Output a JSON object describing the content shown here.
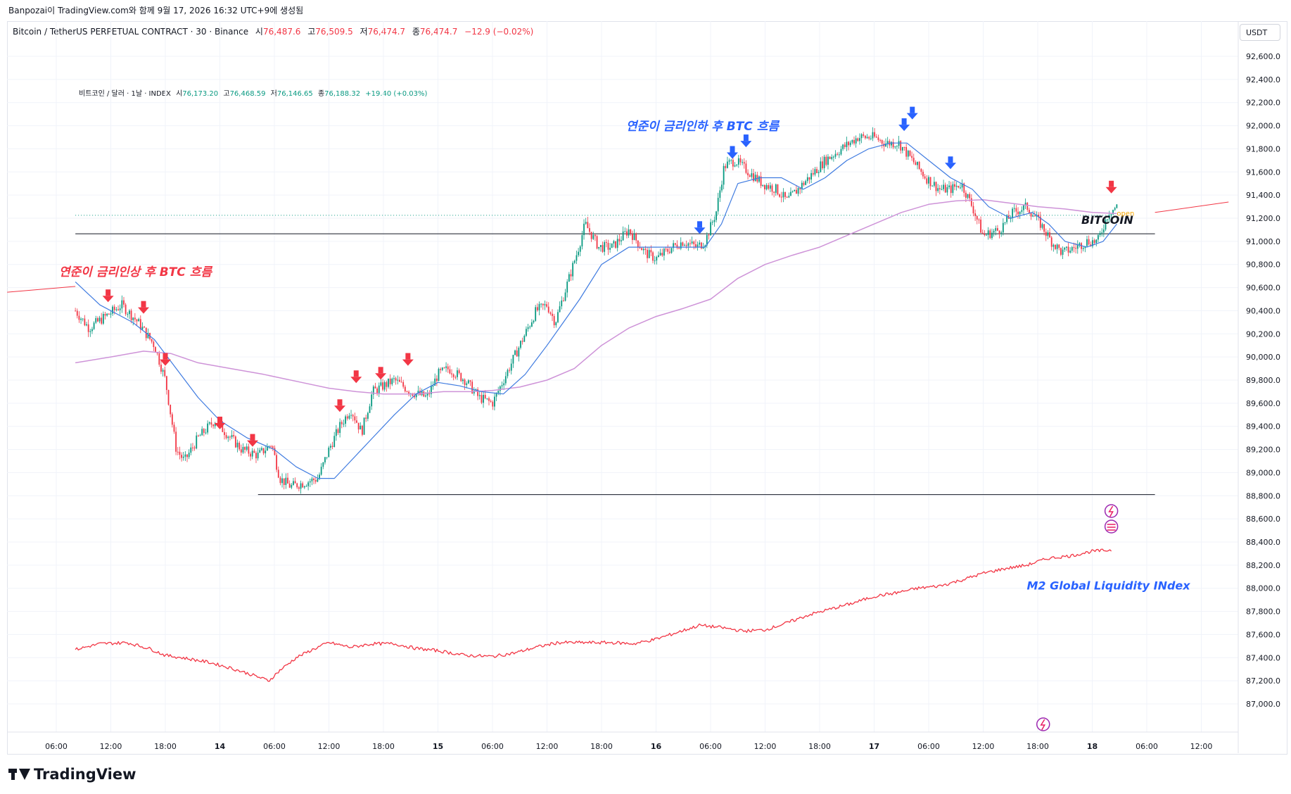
{
  "header": {
    "publish_line": "Banpozai이 TradingView.com와 함께 9월 17, 2026 16:32 UTC+9에 생성됨"
  },
  "legend": {
    "symbol": "Bitcoin / TetherUS PERPETUAL CONTRACT · 30 · Binance",
    "open_label": "시",
    "open": "76,487.6",
    "high_label": "고",
    "high": "76,509.5",
    "low_label": "저",
    "low": "76,474.7",
    "close_label": "종",
    "close": "76,474.7",
    "change": "−12.9 (−0.02%)"
  },
  "legend2": {
    "symbol": "비트코인 / 달러 · 1날 · INDEX",
    "open_label": "시",
    "open": "76,173.20",
    "high_label": "고",
    "high": "76,468.59",
    "low_label": "저",
    "low": "76,146.65",
    "close_label": "종",
    "close": "76,188.32",
    "change": "+19.40 (+0.03%)"
  },
  "currency": "USDT",
  "footer": {
    "brand": "TradingView"
  },
  "colors": {
    "up": "#089981",
    "down": "#f23645",
    "ma_fast": "#3f7be0",
    "ma_slow": "#ce93d8",
    "m2": "#f23645",
    "buy_arrow": "#2962ff",
    "sell_arrow": "#f23645",
    "ann_red": "#f23645",
    "ann_blue": "#2962ff"
  },
  "chart_data": {
    "type": "line",
    "yticks": [
      "92,600.0",
      "92,400.0",
      "92,200.0",
      "92,000.0",
      "91,800.0",
      "91,600.0",
      "91,400.0",
      "91,200.0",
      "91,000.0",
      "90,800.0",
      "90,600.0",
      "90,400.0",
      "90,200.0",
      "90,000.0",
      "89,800.0",
      "89,600.0",
      "89,400.0",
      "89,200.0",
      "89,000.0",
      "88,800.0",
      "88,600.0",
      "88,400.0",
      "88,200.0",
      "88,000.0",
      "87,800.0",
      "87,600.0",
      "87,400.0",
      "87,200.0",
      "87,000.0"
    ],
    "ylim": [
      86900,
      92700
    ],
    "xticks": [
      "06:00",
      "12:00",
      "18:00",
      "14",
      "06:00",
      "12:00",
      "18:00",
      "15",
      "06:00",
      "12:00",
      "18:00",
      "16",
      "06:00",
      "12:00",
      "18:00",
      "17",
      "06:00",
      "12:00",
      "18:00",
      "18",
      "06:00",
      "12:00"
    ],
    "xticks_bold": [
      3,
      7,
      11,
      15,
      19
    ],
    "xlim_ticks": [
      0,
      21
    ],
    "data_range_ticks": [
      0.35,
      18.35
    ],
    "price_path": [
      [
        0.35,
        90400
      ],
      [
        0.6,
        90250
      ],
      [
        0.9,
        90350
      ],
      [
        1.2,
        90450
      ],
      [
        1.5,
        90300
      ],
      [
        1.8,
        90100
      ],
      [
        2.0,
        89800
      ],
      [
        2.1,
        89500
      ],
      [
        2.2,
        89200
      ],
      [
        2.35,
        89100
      ],
      [
        2.6,
        89300
      ],
      [
        2.9,
        89450
      ],
      [
        3.1,
        89350
      ],
      [
        3.4,
        89200
      ],
      [
        3.7,
        89150
      ],
      [
        3.95,
        89250
      ],
      [
        4.1,
        88950
      ],
      [
        4.3,
        88880
      ],
      [
        4.6,
        88920
      ],
      [
        4.8,
        88950
      ],
      [
        5.0,
        89200
      ],
      [
        5.2,
        89400
      ],
      [
        5.4,
        89550
      ],
      [
        5.6,
        89350
      ],
      [
        5.8,
        89700
      ],
      [
        6.0,
        89750
      ],
      [
        6.2,
        89800
      ],
      [
        6.5,
        89700
      ],
      [
        6.8,
        89650
      ],
      [
        7.0,
        89850
      ],
      [
        7.2,
        89900
      ],
      [
        7.5,
        89800
      ],
      [
        7.75,
        89650
      ],
      [
        8.0,
        89600
      ],
      [
        8.2,
        89800
      ],
      [
        8.4,
        90000
      ],
      [
        8.6,
        90200
      ],
      [
        8.8,
        90400
      ],
      [
        9.0,
        90450
      ],
      [
        9.15,
        90300
      ],
      [
        9.35,
        90600
      ],
      [
        9.55,
        90900
      ],
      [
        9.7,
        91150
      ],
      [
        9.95,
        90950
      ],
      [
        10.2,
        90950
      ],
      [
        10.5,
        91100
      ],
      [
        10.8,
        90900
      ],
      [
        11.0,
        90850
      ],
      [
        11.3,
        90950
      ],
      [
        11.5,
        91000
      ],
      [
        11.75,
        90950
      ],
      [
        11.9,
        91000
      ],
      [
        12.1,
        91250
      ],
      [
        12.25,
        91650
      ],
      [
        12.45,
        91700
      ],
      [
        12.7,
        91600
      ],
      [
        12.95,
        91500
      ],
      [
        13.2,
        91450
      ],
      [
        13.4,
        91350
      ],
      [
        13.6,
        91450
      ],
      [
        13.8,
        91550
      ],
      [
        14.1,
        91700
      ],
      [
        14.4,
        91800
      ],
      [
        14.7,
        91900
      ],
      [
        15.0,
        91900
      ],
      [
        15.2,
        91850
      ],
      [
        15.45,
        91850
      ],
      [
        15.7,
        91700
      ],
      [
        15.95,
        91550
      ],
      [
        16.2,
        91450
      ],
      [
        16.4,
        91450
      ],
      [
        16.6,
        91500
      ],
      [
        16.8,
        91300
      ],
      [
        17.0,
        91050
      ],
      [
        17.3,
        91100
      ],
      [
        17.55,
        91250
      ],
      [
        17.8,
        91300
      ],
      [
        18.05,
        91150
      ],
      [
        18.25,
        91000
      ],
      [
        18.45,
        90900
      ],
      [
        18.7,
        90950
      ],
      [
        18.9,
        91000
      ],
      [
        19.1,
        91000
      ],
      [
        19.3,
        91250
      ],
      [
        19.45,
        91300
      ]
    ],
    "ma_fast": [
      [
        0.35,
        90650
      ],
      [
        0.8,
        90450
      ],
      [
        1.4,
        90300
      ],
      [
        1.8,
        90150
      ],
      [
        2.2,
        89900
      ],
      [
        2.6,
        89650
      ],
      [
        3.0,
        89450
      ],
      [
        3.5,
        89300
      ],
      [
        4.0,
        89200
      ],
      [
        4.4,
        89050
      ],
      [
        4.8,
        88950
      ],
      [
        5.1,
        88950
      ],
      [
        5.4,
        89100
      ],
      [
        5.8,
        89300
      ],
      [
        6.2,
        89500
      ],
      [
        6.6,
        89680
      ],
      [
        7.0,
        89780
      ],
      [
        7.4,
        89750
      ],
      [
        7.8,
        89700
      ],
      [
        8.2,
        89680
      ],
      [
        8.6,
        89850
      ],
      [
        9.0,
        90100
      ],
      [
        9.3,
        90300
      ],
      [
        9.6,
        90500
      ],
      [
        10.0,
        90800
      ],
      [
        10.5,
        90950
      ],
      [
        11.0,
        90950
      ],
      [
        11.5,
        90950
      ],
      [
        11.9,
        90950
      ],
      [
        12.2,
        91150
      ],
      [
        12.5,
        91500
      ],
      [
        12.9,
        91550
      ],
      [
        13.3,
        91550
      ],
      [
        13.7,
        91450
      ],
      [
        14.1,
        91550
      ],
      [
        14.5,
        91700
      ],
      [
        14.9,
        91800
      ],
      [
        15.3,
        91850
      ],
      [
        15.6,
        91850
      ],
      [
        16.0,
        91700
      ],
      [
        16.4,
        91550
      ],
      [
        16.8,
        91450
      ],
      [
        17.1,
        91300
      ],
      [
        17.5,
        91200
      ],
      [
        17.9,
        91250
      ],
      [
        18.2,
        91150
      ],
      [
        18.5,
        91000
      ],
      [
        18.9,
        90950
      ],
      [
        19.2,
        91000
      ],
      [
        19.45,
        91150
      ]
    ],
    "ma_slow": [
      [
        0.35,
        89950
      ],
      [
        1.0,
        90000
      ],
      [
        1.6,
        90050
      ],
      [
        2.1,
        90030
      ],
      [
        2.6,
        89950
      ],
      [
        3.2,
        89900
      ],
      [
        3.8,
        89850
      ],
      [
        4.5,
        89780
      ],
      [
        5.0,
        89730
      ],
      [
        5.5,
        89700
      ],
      [
        6.0,
        89680
      ],
      [
        6.6,
        89680
      ],
      [
        7.1,
        89700
      ],
      [
        7.6,
        89700
      ],
      [
        8.0,
        89710
      ],
      [
        8.5,
        89740
      ],
      [
        9.0,
        89800
      ],
      [
        9.5,
        89900
      ],
      [
        10.0,
        90100
      ],
      [
        10.5,
        90250
      ],
      [
        11.0,
        90350
      ],
      [
        11.5,
        90420
      ],
      [
        12.0,
        90500
      ],
      [
        12.5,
        90680
      ],
      [
        13.0,
        90800
      ],
      [
        13.5,
        90880
      ],
      [
        14.0,
        90950
      ],
      [
        14.5,
        91050
      ],
      [
        15.0,
        91150
      ],
      [
        15.5,
        91250
      ],
      [
        16.0,
        91320
      ],
      [
        16.5,
        91350
      ],
      [
        17.0,
        91360
      ],
      [
        17.5,
        91330
      ],
      [
        18.0,
        91300
      ],
      [
        18.5,
        91280
      ],
      [
        19.0,
        91250
      ],
      [
        19.45,
        91240
      ]
    ],
    "m2_path": [
      [
        0.35,
        87470
      ],
      [
        0.8,
        87520
      ],
      [
        1.3,
        87530
      ],
      [
        1.7,
        87480
      ],
      [
        2.0,
        87420
      ],
      [
        2.3,
        87400
      ],
      [
        2.8,
        87360
      ],
      [
        3.2,
        87310
      ],
      [
        3.6,
        87250
      ],
      [
        3.9,
        87200
      ],
      [
        4.1,
        87290
      ],
      [
        4.4,
        87400
      ],
      [
        4.7,
        87470
      ],
      [
        5.0,
        87530
      ],
      [
        5.4,
        87490
      ],
      [
        5.8,
        87520
      ],
      [
        6.2,
        87520
      ],
      [
        6.6,
        87480
      ],
      [
        7.0,
        87460
      ],
      [
        7.5,
        87420
      ],
      [
        8.0,
        87410
      ],
      [
        8.4,
        87440
      ],
      [
        8.8,
        87490
      ],
      [
        9.2,
        87530
      ],
      [
        9.7,
        87530
      ],
      [
        10.2,
        87530
      ],
      [
        10.6,
        87520
      ],
      [
        11.0,
        87560
      ],
      [
        11.4,
        87620
      ],
      [
        11.8,
        87680
      ],
      [
        12.2,
        87660
      ],
      [
        12.6,
        87630
      ],
      [
        13.0,
        87640
      ],
      [
        13.4,
        87700
      ],
      [
        13.8,
        87770
      ],
      [
        14.2,
        87820
      ],
      [
        14.6,
        87870
      ],
      [
        15.0,
        87930
      ],
      [
        15.4,
        87960
      ],
      [
        15.8,
        88000
      ],
      [
        16.2,
        88020
      ],
      [
        16.6,
        88070
      ],
      [
        17.0,
        88130
      ],
      [
        17.4,
        88170
      ],
      [
        17.8,
        88200
      ],
      [
        18.2,
        88260
      ],
      [
        18.6,
        88280
      ],
      [
        19.0,
        88320
      ],
      [
        19.35,
        88330
      ]
    ],
    "hlines": [
      {
        "price": 91065,
        "x_from": 0.35,
        "x_to": 20.15
      },
      {
        "price": 88810,
        "x_from": 3.7,
        "x_to": 20.15
      }
    ],
    "dotted_line": {
      "price": 91225,
      "x_from": 0.35,
      "x_to": 19.4
    },
    "trend_left": [
      [
        -0.9,
        90560
      ],
      [
        0.35,
        90610
      ]
    ],
    "trend_right": [
      [
        20.15,
        91250
      ],
      [
        21.5,
        91340
      ]
    ],
    "sell_arrows": [
      [
        0.95,
        90450
      ],
      [
        1.6,
        90350
      ],
      [
        2.0,
        89900
      ],
      [
        3.0,
        89350
      ],
      [
        3.6,
        89200
      ],
      [
        5.2,
        89500
      ],
      [
        5.5,
        89750
      ],
      [
        5.95,
        89780
      ],
      [
        6.45,
        89900
      ],
      [
        19.35,
        91390
      ]
    ],
    "buy_arrows": [
      [
        11.8,
        91040
      ],
      [
        12.4,
        91690
      ],
      [
        12.65,
        91790
      ],
      [
        15.55,
        91930
      ],
      [
        15.7,
        92030
      ],
      [
        16.4,
        91600
      ]
    ],
    "annotations": [
      {
        "text": "연준이 금리인상 후 BTC 흐름",
        "x": 0.05,
        "price": 90700,
        "color_key": "ann_red",
        "size": 17
      },
      {
        "text": "연준이 금리인하 후 BTC 흐름",
        "x": 10.45,
        "price": 91960,
        "color_key": "ann_blue",
        "size": 17
      },
      {
        "text": "BITCOIN",
        "x": 18.8,
        "price": 91150,
        "color_key": "black",
        "size": 16
      },
      {
        "text": "M2 Global Liquidity INdex",
        "x": 17.8,
        "price": 87990,
        "color_key": "ann_blue",
        "size": 16
      }
    ],
    "open_label": {
      "text": "open",
      "x": 19.45,
      "price": 91245
    }
  }
}
